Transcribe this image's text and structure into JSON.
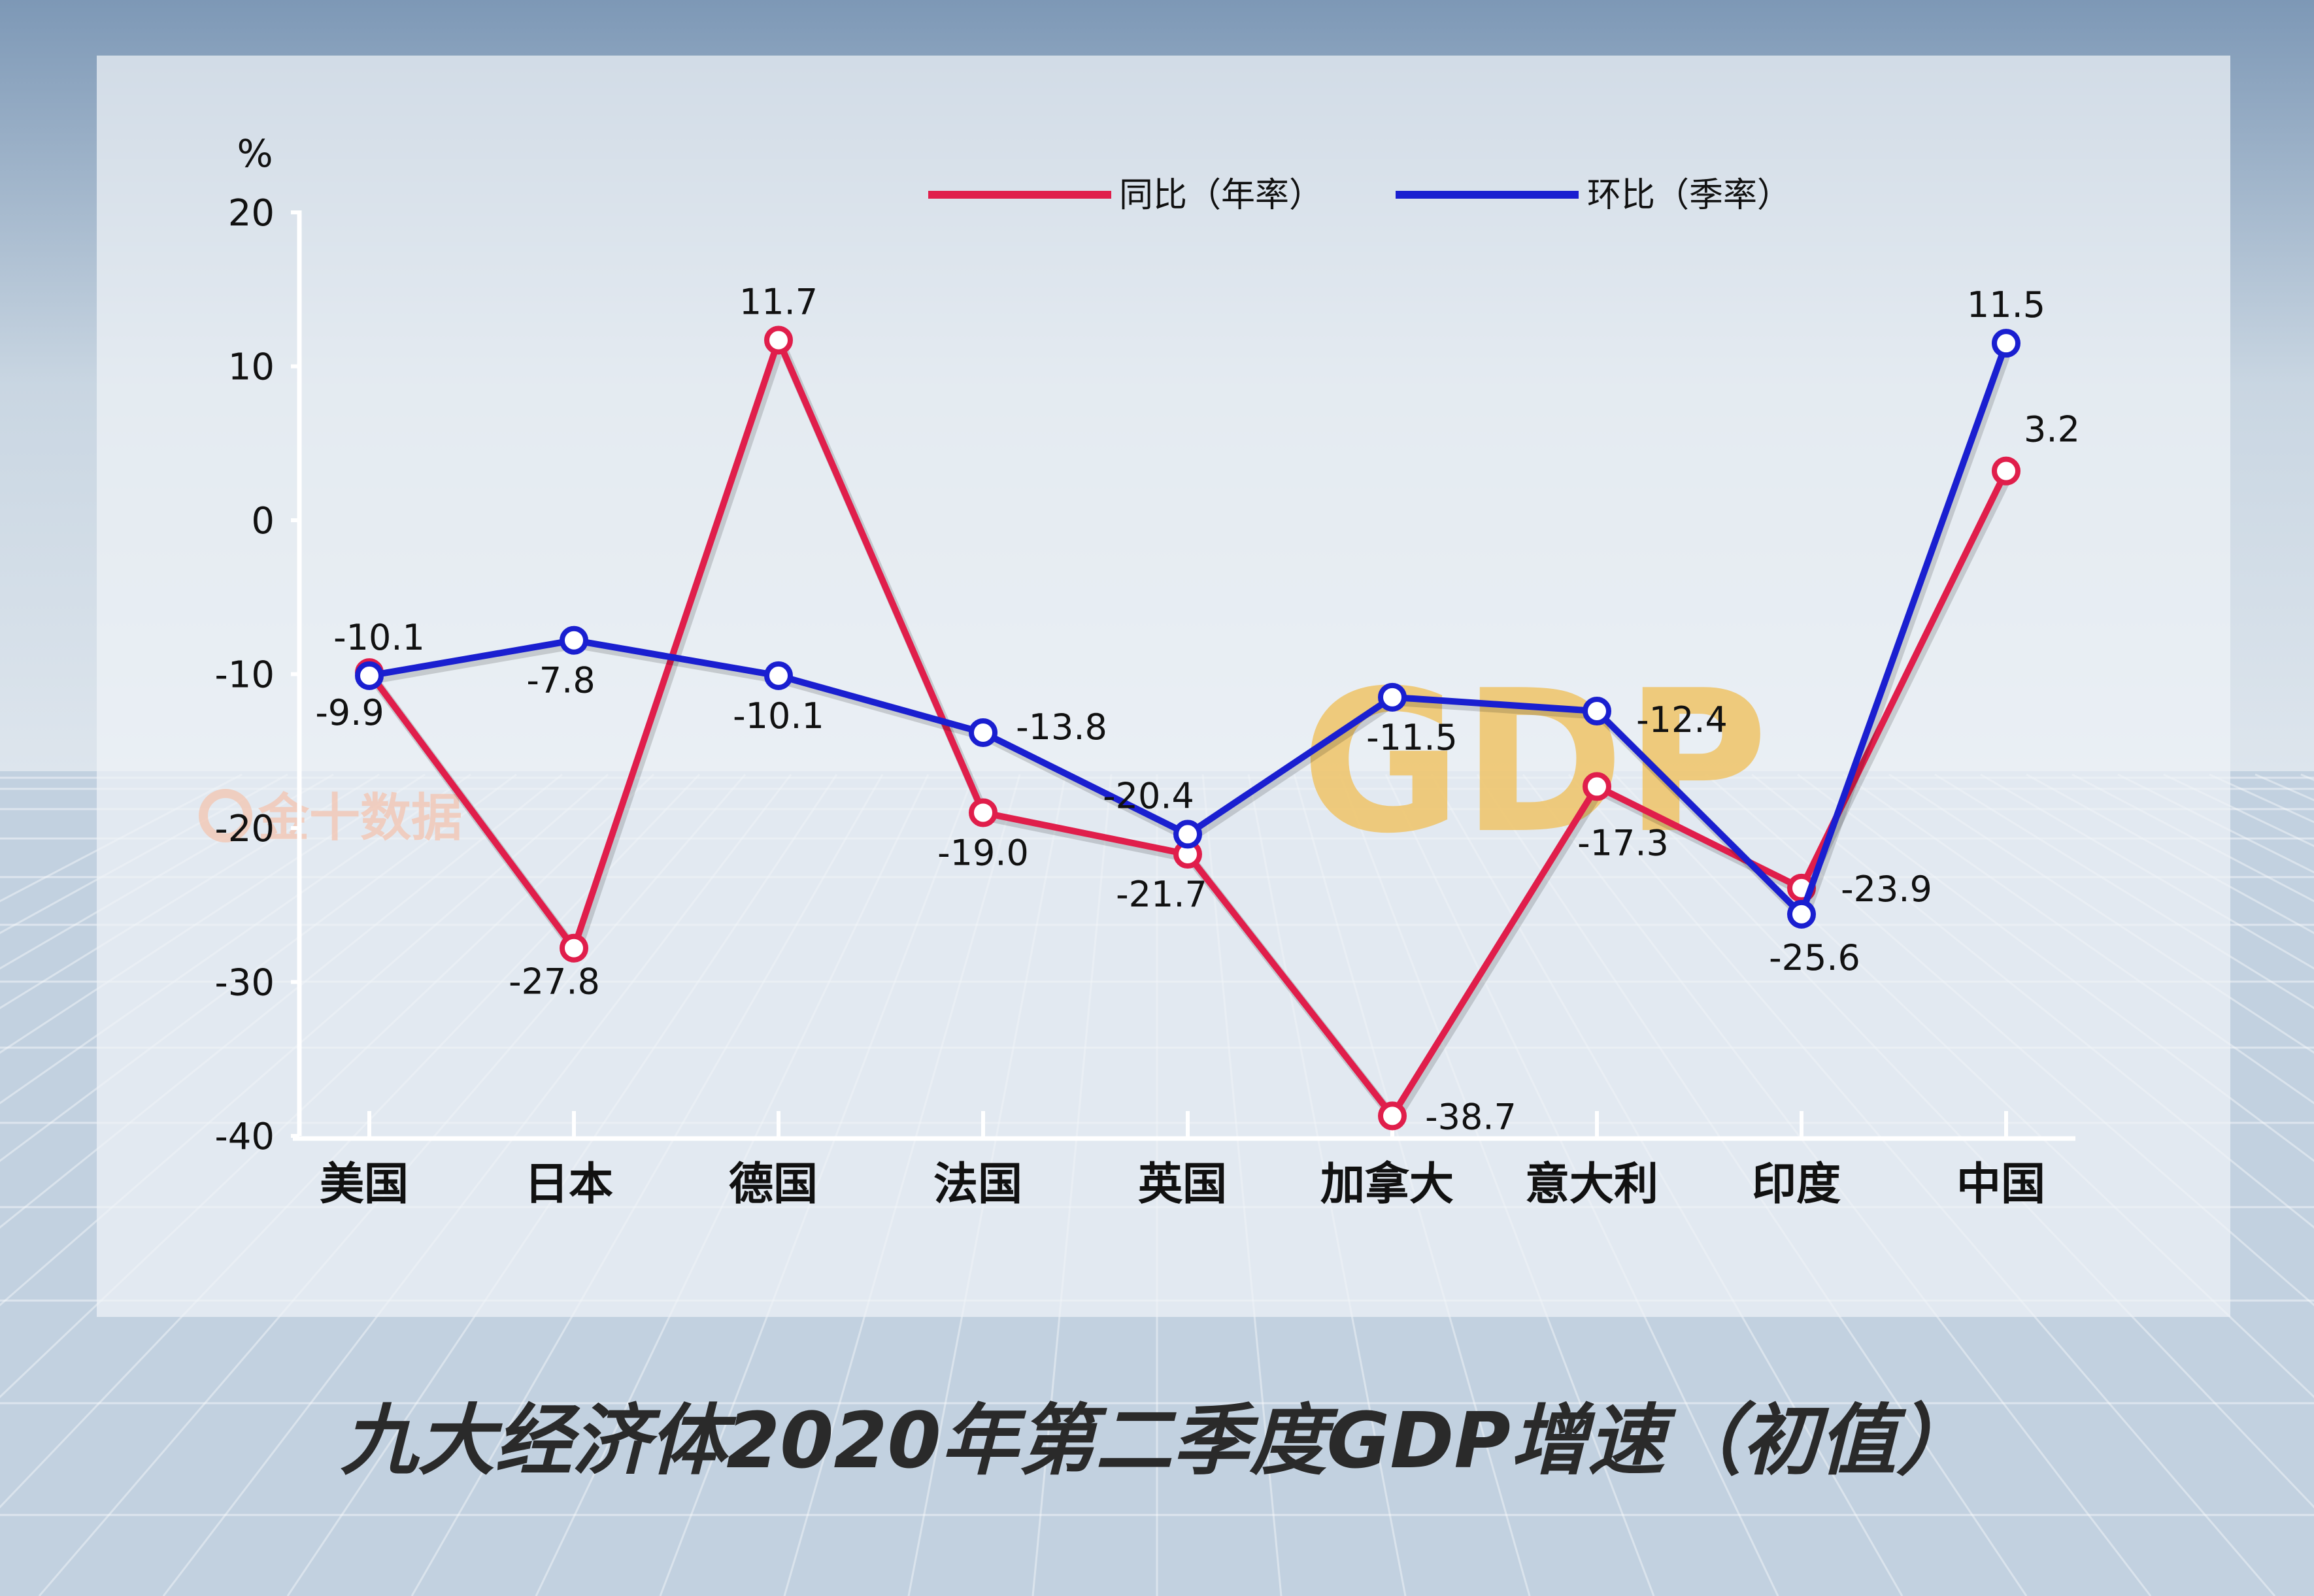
{
  "title": "九大经济体2020年第二季度GDP增速（初值）",
  "watermark": "金十数据",
  "background_text": "GDP",
  "colors": {
    "yoy": "#e01e4b",
    "qoq": "#1a1fd0",
    "panel": "#e8eef4"
  },
  "chart_data": {
    "type": "line",
    "title": "九大经济体2020年第二季度GDP增速（初值）",
    "ylabel": "%",
    "xlabel": "",
    "ylim": [
      -40,
      20
    ],
    "yticks": [
      20,
      10,
      0,
      -10,
      -20,
      -30,
      -40
    ],
    "ytick_labels": [
      "20",
      "10",
      "0",
      "-10",
      "-20",
      "-30",
      "-40"
    ],
    "categories": [
      "美国",
      "日本",
      "德国",
      "法国",
      "英国",
      "加拿大",
      "意大利",
      "印度",
      "中国"
    ],
    "grid": false,
    "legend_position": "top",
    "series": [
      {
        "name": "同比（年率）",
        "color": "#e01e4b",
        "values": [
          -9.9,
          -27.8,
          11.7,
          -19.0,
          -21.7,
          -38.7,
          -17.3,
          -23.9,
          3.2
        ],
        "labels": [
          "-9.9",
          "-27.8",
          "11.7",
          "-19.0",
          "-21.7",
          "-38.7",
          "-17.3",
          "-23.9",
          "3.2"
        ]
      },
      {
        "name": "环比（季率）",
        "color": "#1a1fd0",
        "values": [
          -10.1,
          -7.8,
          -10.1,
          -13.8,
          -20.4,
          -11.5,
          -12.4,
          -25.6,
          11.5
        ],
        "labels": [
          "-10.1",
          "-7.8",
          "-10.1",
          "-13.8",
          "-20.4",
          "-11.5",
          "-12.4",
          "-25.6",
          "11.5"
        ]
      }
    ]
  }
}
